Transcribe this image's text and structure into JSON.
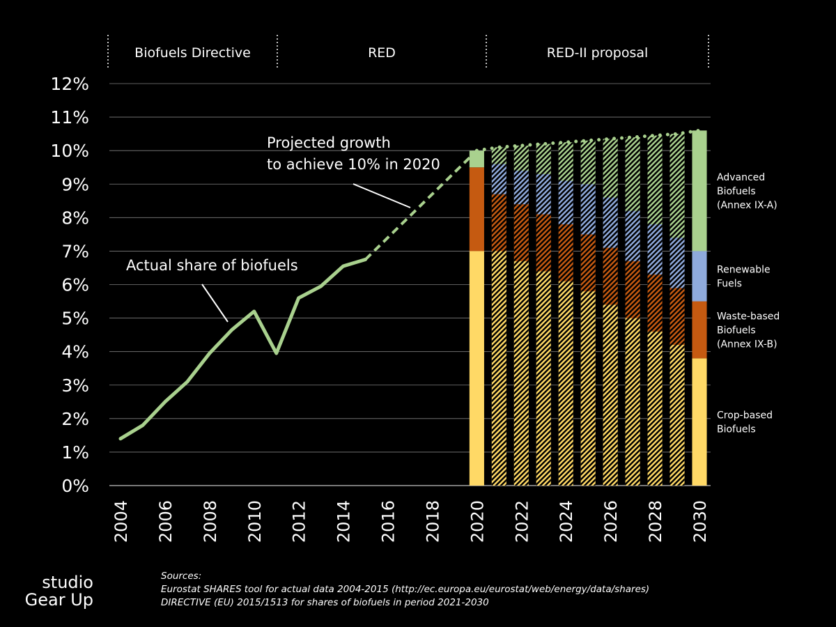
{
  "chart_data": {
    "type": "bar",
    "periods": [
      "Biofuels Directive",
      "RED",
      "RED-II proposal"
    ],
    "yticks": [
      "0%",
      "1%",
      "2%",
      "3%",
      "4%",
      "5%",
      "6%",
      "7%",
      "8%",
      "9%",
      "10%",
      "11%",
      "12%"
    ],
    "ylim": [
      0,
      12
    ],
    "xticks": [
      "2004",
      "2006",
      "2008",
      "2010",
      "2012",
      "2014",
      "2016",
      "2018",
      "2020",
      "2022",
      "2024",
      "2026",
      "2028",
      "2030"
    ],
    "grid": true,
    "actual_share": {
      "label": "Actual share of biofuels",
      "x": [
        2004,
        2005,
        2006,
        2007,
        2008,
        2009,
        2010,
        2011,
        2012,
        2013,
        2014,
        2015
      ],
      "y": [
        1.4,
        1.8,
        2.5,
        3.1,
        3.95,
        4.65,
        5.2,
        3.95,
        5.6,
        5.95,
        6.55,
        6.75
      ]
    },
    "projected_growth": {
      "label_lines": [
        "Projected growth",
        "to achieve 10% in 2020"
      ],
      "x": [
        2015,
        2020
      ],
      "y": [
        6.75,
        10.0
      ]
    },
    "target_total": {
      "x": [
        2020,
        2021,
        2022,
        2023,
        2024,
        2025,
        2026,
        2027,
        2028,
        2029,
        2030
      ],
      "y": [
        10.0,
        10.1,
        10.15,
        10.2,
        10.25,
        10.3,
        10.35,
        10.4,
        10.45,
        10.5,
        10.6
      ]
    },
    "categories": [
      "2020",
      "2021",
      "2022",
      "2023",
      "2024",
      "2025",
      "2026",
      "2027",
      "2028",
      "2029",
      "2030"
    ],
    "series": [
      {
        "name": "Crop-based Biofuels",
        "color": "#ffd966",
        "values": [
          7.0,
          7.0,
          6.7,
          6.4,
          6.1,
          5.8,
          5.4,
          5.0,
          4.6,
          4.2,
          3.8
        ]
      },
      {
        "name": "Waste-based Biofuels (Annex IX-B)",
        "color": "#c55a11",
        "values": [
          2.5,
          1.7,
          1.7,
          1.7,
          1.7,
          1.7,
          1.7,
          1.7,
          1.7,
          1.7,
          1.7
        ]
      },
      {
        "name": "Renewable Fuels",
        "color": "#8faadc",
        "values": [
          0.0,
          0.9,
          1.0,
          1.2,
          1.3,
          1.5,
          1.5,
          1.5,
          1.5,
          1.5,
          1.5
        ]
      },
      {
        "name": "Advanced Biofuels (Annex IX-A)",
        "color": "#a9d18e",
        "values": [
          0.5,
          0.5,
          0.75,
          0.9,
          1.15,
          1.3,
          1.75,
          2.2,
          2.65,
          3.1,
          3.6
        ]
      }
    ],
    "hatched_categories": [
      "2021",
      "2022",
      "2023",
      "2024",
      "2025",
      "2026",
      "2027",
      "2028",
      "2029"
    ],
    "legend": [
      {
        "series": "Advanced Biofuels (Annex IX-A)",
        "lines": [
          "Advanced",
          "Biofuels",
          "(Annex IX-A)"
        ]
      },
      {
        "series": "Renewable Fuels",
        "lines": [
          "Renewable",
          "Fuels"
        ]
      },
      {
        "series": "Waste-based Biofuels (Annex IX-B)",
        "lines": [
          "Waste-based",
          "Biofuels",
          "(Annex IX-B)"
        ]
      },
      {
        "series": "Crop-based Biofuels",
        "lines": [
          "Crop-based",
          "Biofuels"
        ]
      }
    ],
    "legend_placement": "right",
    "line_color": "#a9d18e"
  },
  "sources": {
    "heading": "Sources:",
    "lines": [
      "Eurostat SHARES tool for actual data 2004-2015 (http://ec.europa.eu/eurostat/web/energy/data/shares)",
      "DIRECTIVE (EU) 2015/1513 for shares of biofuels in period 2021-2030"
    ]
  },
  "logo": {
    "line1": "studio",
    "line2": "Gear Up"
  }
}
